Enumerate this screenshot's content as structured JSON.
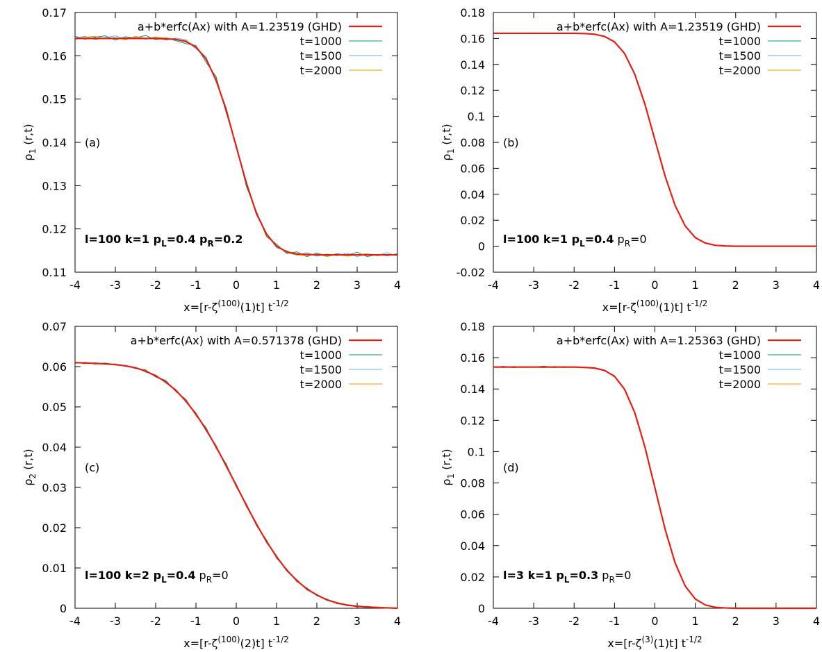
{
  "chart_data": [
    {
      "type": "line",
      "panel_label": "(a)",
      "ylabel": [
        {
          "text": "ρ"
        },
        {
          "text": "1",
          "sub": true
        },
        {
          "text": " (r,t)"
        }
      ],
      "xlabel": [
        {
          "text": "x=[r-ζ"
        },
        {
          "text": "(100)",
          "sup": true
        },
        {
          "text": "(1)t] t"
        },
        {
          "text": "-1/2",
          "sup": true
        }
      ],
      "annotation": [
        {
          "text": "l=100 k=1 p",
          "bold": true
        },
        {
          "text": "L",
          "sub": true,
          "bold": true
        },
        {
          "text": "=0.4 p",
          "bold": true
        },
        {
          "text": "R",
          "sub": true,
          "bold": true
        },
        {
          "text": "=0.2",
          "bold": true
        }
      ],
      "xlim": [
        -4,
        4
      ],
      "xticks": [
        -4,
        -3,
        -2,
        -1,
        0,
        1,
        2,
        3,
        4
      ],
      "ylim": [
        0.11,
        0.17
      ],
      "yticks": [
        0.11,
        0.12,
        0.13,
        0.14,
        0.15,
        0.16,
        0.17
      ],
      "legend": "top-right",
      "x": [
        -4,
        -3.75,
        -3.5,
        -3.25,
        -3,
        -2.75,
        -2.5,
        -2.25,
        -2,
        -1.75,
        -1.5,
        -1.25,
        -1,
        -0.75,
        -0.5,
        -0.25,
        0,
        0.25,
        0.5,
        0.75,
        1,
        1.25,
        1.5,
        1.75,
        2,
        2.25,
        2.5,
        2.75,
        3,
        3.25,
        3.5,
        3.75,
        4
      ],
      "series": [
        {
          "name": "t=1000",
          "color": "#009e73",
          "values": [
            0.1645,
            0.1638,
            0.1643,
            0.1646,
            0.1636,
            0.1644,
            0.1641,
            0.1647,
            0.1637,
            0.1642,
            0.1635,
            0.1628,
            0.1624,
            0.1585,
            0.1552,
            0.1468,
            0.1395,
            0.1298,
            0.1241,
            0.1182,
            0.1165,
            0.1143,
            0.1147,
            0.1136,
            0.1144,
            0.1137,
            0.1143,
            0.1139,
            0.1146,
            0.1136,
            0.1141,
            0.1138,
            0.1143
          ]
        },
        {
          "name": "t=1500",
          "color": "#56b4e9",
          "values": [
            0.1641,
            0.1645,
            0.1637,
            0.1642,
            0.1646,
            0.1639,
            0.1643,
            0.1638,
            0.1644,
            0.1636,
            0.1641,
            0.1637,
            0.1616,
            0.1598,
            0.1539,
            0.1481,
            0.1386,
            0.1311,
            0.1232,
            0.1191,
            0.1156,
            0.115,
            0.1139,
            0.1145,
            0.1137,
            0.1142,
            0.1138,
            0.1144,
            0.1136,
            0.1142,
            0.1139,
            0.1145,
            0.1137
          ]
        },
        {
          "name": "t=2000",
          "color": "#e69f00",
          "values": [
            0.1638,
            0.1643,
            0.1645,
            0.1639,
            0.1642,
            0.1637,
            0.1645,
            0.164,
            0.1643,
            0.1641,
            0.1637,
            0.1635,
            0.1621,
            0.159,
            0.1547,
            0.1472,
            0.1392,
            0.1303,
            0.1238,
            0.1185,
            0.1162,
            0.1145,
            0.114,
            0.1138,
            0.1142,
            0.1136,
            0.1141,
            0.1137,
            0.114,
            0.1143,
            0.1138,
            0.1141,
            0.1139
          ]
        },
        {
          "name": "a+b*erfc(Ax) with A=1.23519 (GHD)",
          "color": "#e51e10",
          "values": [
            0.164,
            0.164,
            0.164,
            0.164,
            0.164,
            0.164,
            0.164,
            0.164,
            0.164,
            0.1639,
            0.1638,
            0.1633,
            0.162,
            0.1593,
            0.1544,
            0.1475,
            0.139,
            0.1306,
            0.1236,
            0.1188,
            0.116,
            0.1147,
            0.1142,
            0.1141,
            0.114,
            0.114,
            0.114,
            0.114,
            0.114,
            0.114,
            0.114,
            0.114,
            0.114
          ]
        }
      ]
    },
    {
      "type": "line",
      "panel_label": "(b)",
      "ylabel": [
        {
          "text": "ρ"
        },
        {
          "text": "1",
          "sub": true
        },
        {
          "text": " (r,t)"
        }
      ],
      "xlabel": [
        {
          "text": "x=[r-ζ"
        },
        {
          "text": "(100)",
          "sup": true
        },
        {
          "text": "(1)t] t"
        },
        {
          "text": "-1/2",
          "sup": true
        }
      ],
      "annotation": [
        {
          "text": "l=100 k=1 p",
          "bold": true
        },
        {
          "text": "L",
          "sub": true,
          "bold": true
        },
        {
          "text": "=0.4",
          "bold": true
        },
        {
          "text": " p"
        },
        {
          "text": "R",
          "sub": true
        },
        {
          "text": "=0"
        }
      ],
      "xlim": [
        -4,
        4
      ],
      "xticks": [
        -4,
        -3,
        -2,
        -1,
        0,
        1,
        2,
        3,
        4
      ],
      "ylim": [
        -0.02,
        0.18
      ],
      "yticks": [
        -0.02,
        0,
        0.02,
        0.04,
        0.06,
        0.08,
        0.1,
        0.12,
        0.14,
        0.16,
        0.18
      ],
      "legend": "top-right",
      "x": [
        -4,
        -3.75,
        -3.5,
        -3.25,
        -3,
        -2.75,
        -2.5,
        -2.25,
        -2,
        -1.75,
        -1.5,
        -1.25,
        -1,
        -0.75,
        -0.5,
        -0.25,
        0,
        0.25,
        0.5,
        0.75,
        1,
        1.25,
        1.5,
        1.75,
        2,
        2.25,
        2.5,
        2.75,
        3,
        3.25,
        3.5,
        3.75,
        4
      ],
      "series": [
        {
          "name": "t=1000",
          "color": "#009e73",
          "values": [
            0.1642,
            0.1638,
            0.1641,
            0.1639,
            0.1643,
            0.1637,
            0.164,
            0.1641,
            0.1638,
            0.164,
            0.1632,
            0.1619,
            0.1571,
            0.1488,
            0.1322,
            0.1101,
            0.0817,
            0.0547,
            0.0311,
            0.0159,
            0.0064,
            0.0026,
            0.0006,
            0.0003,
            0.0001,
            -0.0002,
            0.0003,
            0,
            -0.0001,
            0.0002,
            0.0001,
            -0.0002,
            0.0002
          ]
        },
        {
          "name": "t=1500",
          "color": "#56b4e9",
          "values": [
            0.1639,
            0.1642,
            0.164,
            0.1638,
            0.1641,
            0.1642,
            0.1639,
            0.1638,
            0.1641,
            0.1637,
            0.1635,
            0.1614,
            0.1577,
            0.1481,
            0.1329,
            0.1094,
            0.0823,
            0.054,
            0.0317,
            0.0153,
            0.0068,
            0.0022,
            0.0008,
            0.0001,
            0.0002,
            0,
            -0.0001,
            0.0002,
            0.0001,
            0,
            0.0002,
            -0.0001,
            0
          ]
        },
        {
          "name": "t=2000",
          "color": "#e69f00",
          "values": [
            0.1641,
            0.164,
            0.1639,
            0.1642,
            0.1638,
            0.164,
            0.1642,
            0.1639,
            0.164,
            0.1639,
            0.1634,
            0.1617,
            0.1573,
            0.1486,
            0.1325,
            0.1099,
            0.0819,
            0.0545,
            0.0313,
            0.0157,
            0.0065,
            0.0025,
            0.0007,
            0.0002,
            0,
            0.0003,
            0.0001,
            -0.0002,
            0.0002,
            0.0003,
            -0.0001,
            0.0001,
            0.0002
          ]
        },
        {
          "name": "a+b*erfc(Ax) with A=1.23519 (GHD)",
          "color": "#e51e10",
          "values": [
            0.164,
            0.164,
            0.164,
            0.164,
            0.164,
            0.164,
            0.164,
            0.164,
            0.164,
            0.1638,
            0.1633,
            0.1616,
            0.1574,
            0.1484,
            0.1326,
            0.1097,
            0.082,
            0.0543,
            0.0314,
            0.0156,
            0.0066,
            0.0024,
            0.0007,
            0.0002,
            0,
            0,
            0,
            0,
            0,
            0,
            0,
            0,
            0
          ]
        }
      ]
    },
    {
      "type": "line",
      "panel_label": "(c)",
      "ylabel": [
        {
          "text": "ρ"
        },
        {
          "text": "2",
          "sub": true
        },
        {
          "text": " (r,t)"
        }
      ],
      "xlabel": [
        {
          "text": "x=[r-ζ"
        },
        {
          "text": "(100)",
          "sup": true
        },
        {
          "text": "(2)t] t"
        },
        {
          "text": "-1/2",
          "sup": true
        }
      ],
      "annotation": [
        {
          "text": "l=100 k=2 p",
          "bold": true
        },
        {
          "text": "L",
          "sub": true,
          "bold": true
        },
        {
          "text": "=0.4",
          "bold": true
        },
        {
          "text": " p"
        },
        {
          "text": "R",
          "sub": true
        },
        {
          "text": "=0"
        }
      ],
      "xlim": [
        -4,
        4
      ],
      "xticks": [
        -4,
        -3,
        -2,
        -1,
        0,
        1,
        2,
        3,
        4
      ],
      "ylim": [
        0,
        0.07
      ],
      "yticks": [
        0,
        0.01,
        0.02,
        0.03,
        0.04,
        0.05,
        0.06,
        0.07
      ],
      "legend": "top-right",
      "x": [
        -4,
        -3.75,
        -3.5,
        -3.25,
        -3,
        -2.75,
        -2.5,
        -2.25,
        -2,
        -1.75,
        -1.5,
        -1.25,
        -1,
        -0.75,
        -0.5,
        -0.25,
        0,
        0.25,
        0.5,
        0.75,
        1,
        1.25,
        1.5,
        1.75,
        2,
        2.25,
        2.5,
        2.75,
        3,
        3.25,
        3.5,
        3.75,
        4
      ],
      "series": [
        {
          "name": "t=1000",
          "color": "#009e73",
          "values": [
            0.0608,
            0.0611,
            0.0606,
            0.0609,
            0.0604,
            0.0603,
            0.0595,
            0.0592,
            0.0574,
            0.0566,
            0.0538,
            0.0519,
            0.0478,
            0.0449,
            0.0397,
            0.0359,
            0.0301,
            0.026,
            0.0205,
            0.017,
            0.0124,
            0.0098,
            0.0066,
            0.0051,
            0.0031,
            0.0023,
            0.0011,
            0.0009,
            0.0003,
            0.0005,
            0.0001,
            0.0002,
            0
          ]
        },
        {
          "name": "t=1500",
          "color": "#56b4e9",
          "values": [
            0.0611,
            0.0607,
            0.061,
            0.0605,
            0.0607,
            0.06,
            0.0599,
            0.0586,
            0.058,
            0.0559,
            0.0544,
            0.0511,
            0.0486,
            0.044,
            0.0405,
            0.035,
            0.0309,
            0.0252,
            0.0213,
            0.0162,
            0.0131,
            0.0092,
            0.0072,
            0.0045,
            0.0035,
            0.0019,
            0.0015,
            0.0006,
            0.0006,
            0.0001,
            0.0003,
            0,
            0.0001
          ]
        },
        {
          "name": "t=2000",
          "color": "#e69f00",
          "values": [
            0.0609,
            0.061,
            0.0608,
            0.0606,
            0.0606,
            0.0603,
            0.0596,
            0.059,
            0.0576,
            0.0563,
            0.054,
            0.0517,
            0.048,
            0.0446,
            0.0399,
            0.0356,
            0.0303,
            0.0258,
            0.0207,
            0.0168,
            0.0126,
            0.0097,
            0.0067,
            0.005,
            0.0032,
            0.0022,
            0.0012,
            0.0008,
            0.0004,
            0.0003,
            0.0002,
            0.0001,
            0.0001
          ]
        },
        {
          "name": "a+b*erfc(Ax) with A=0.571378 (GHD)",
          "color": "#e51e10",
          "values": [
            0.061,
            0.0609,
            0.0608,
            0.0607,
            0.0605,
            0.0602,
            0.0597,
            0.0589,
            0.0577,
            0.0562,
            0.0541,
            0.0515,
            0.0482,
            0.0444,
            0.0401,
            0.0354,
            0.0305,
            0.0256,
            0.0209,
            0.0166,
            0.0128,
            0.0095,
            0.0069,
            0.0048,
            0.0033,
            0.0021,
            0.0013,
            0.0008,
            0.0005,
            0.0003,
            0.0002,
            0.0001,
            0
          ]
        }
      ]
    },
    {
      "type": "line",
      "panel_label": "(d)",
      "ylabel": [
        {
          "text": "ρ"
        },
        {
          "text": "1",
          "sub": true
        },
        {
          "text": " (r,t)"
        }
      ],
      "xlabel": [
        {
          "text": "x=[r-ζ"
        },
        {
          "text": "(3)",
          "sup": true
        },
        {
          "text": "(1)t] t"
        },
        {
          "text": "-1/2",
          "sup": true
        }
      ],
      "annotation": [
        {
          "text": "l=3 k=1 p",
          "bold": true
        },
        {
          "text": "L",
          "sub": true,
          "bold": true
        },
        {
          "text": "=0.3",
          "bold": true
        },
        {
          "text": " p"
        },
        {
          "text": "R",
          "sub": true
        },
        {
          "text": "=0"
        }
      ],
      "xlim": [
        -4,
        4
      ],
      "xticks": [
        -4,
        -3,
        -2,
        -1,
        0,
        1,
        2,
        3,
        4
      ],
      "ylim": [
        0,
        0.18
      ],
      "yticks": [
        0,
        0.02,
        0.04,
        0.06,
        0.08,
        0.1,
        0.12,
        0.14,
        0.16,
        0.18
      ],
      "legend": "top-right",
      "x": [
        -4,
        -3.75,
        -3.5,
        -3.25,
        -3,
        -2.75,
        -2.5,
        -2.25,
        -2,
        -1.75,
        -1.5,
        -1.25,
        -1,
        -0.75,
        -0.5,
        -0.25,
        0,
        0.25,
        0.5,
        0.75,
        1,
        1.25,
        1.5,
        1.75,
        2,
        2.25,
        2.5,
        2.75,
        3,
        3.25,
        3.5,
        3.75,
        4
      ],
      "series": [
        {
          "name": "t=1000",
          "color": "#009e73",
          "values": [
            0.1538,
            0.1545,
            0.1536,
            0.1543,
            0.1539,
            0.1546,
            0.1537,
            0.1542,
            0.154,
            0.1536,
            0.1537,
            0.1515,
            0.1485,
            0.1394,
            0.1254,
            0.1028,
            0.0774,
            0.0503,
            0.0294,
            0.0139,
            0.0061,
            0.0019,
            0.0008,
            0.0001,
            0.0003,
            0,
            0.0002,
            -0.0001,
            0.0003,
            0.0001,
            0,
            0.0002,
            0.0001
          ]
        },
        {
          "name": "t=1500",
          "color": "#56b4e9",
          "values": [
            0.1543,
            0.1537,
            0.1544,
            0.1538,
            0.1542,
            0.1536,
            0.1544,
            0.1539,
            0.1538,
            0.1541,
            0.1531,
            0.1522,
            0.1477,
            0.1402,
            0.1246,
            0.1038,
            0.0766,
            0.0511,
            0.0286,
            0.0145,
            0.0056,
            0.0023,
            0.0005,
            0.0003,
            0,
            0.0002,
            0.0001,
            0.0003,
            -0.0001,
            0.0002,
            0.0001,
            0,
            0.0002
          ]
        },
        {
          "name": "t=2000",
          "color": "#e69f00",
          "values": [
            0.1539,
            0.1541,
            0.1538,
            0.154,
            0.1543,
            0.1539,
            0.1541,
            0.1537,
            0.1541,
            0.1539,
            0.1535,
            0.1518,
            0.1483,
            0.1396,
            0.1252,
            0.1031,
            0.0772,
            0.0505,
            0.0292,
            0.014,
            0.006,
            0.002,
            0.0007,
            0.0002,
            0.0001,
            0.0003,
            0,
            0.0001,
            0.0002,
            -0.0001,
            0.0003,
            0.0001,
            0
          ]
        },
        {
          "name": "a+b*erfc(Ax) with A=1.25363 (GHD)",
          "color": "#e51e10",
          "values": [
            0.154,
            0.154,
            0.154,
            0.154,
            0.154,
            0.154,
            0.154,
            0.154,
            0.154,
            0.1538,
            0.1534,
            0.1519,
            0.1481,
            0.1398,
            0.125,
            0.1033,
            0.077,
            0.0507,
            0.029,
            0.0142,
            0.0059,
            0.0021,
            0.0006,
            0.0002,
            0,
            0,
            0,
            0,
            0,
            0,
            0,
            0,
            0
          ]
        }
      ]
    }
  ]
}
